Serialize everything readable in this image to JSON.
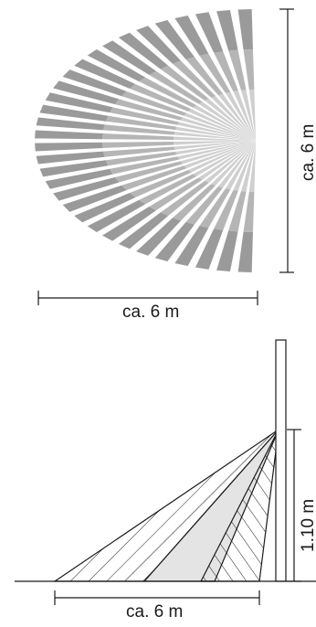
{
  "top_view": {
    "width_label": "ca. 6 m",
    "height_label": "ca. 6 m",
    "zone_colors": [
      "#cfcfcf",
      "#b5b5b5",
      "#9a9a9a"
    ]
  },
  "side_view": {
    "width_label": "ca. 6 m",
    "height_label": "1.10 m",
    "fill_color": "#e4e4e4"
  }
}
